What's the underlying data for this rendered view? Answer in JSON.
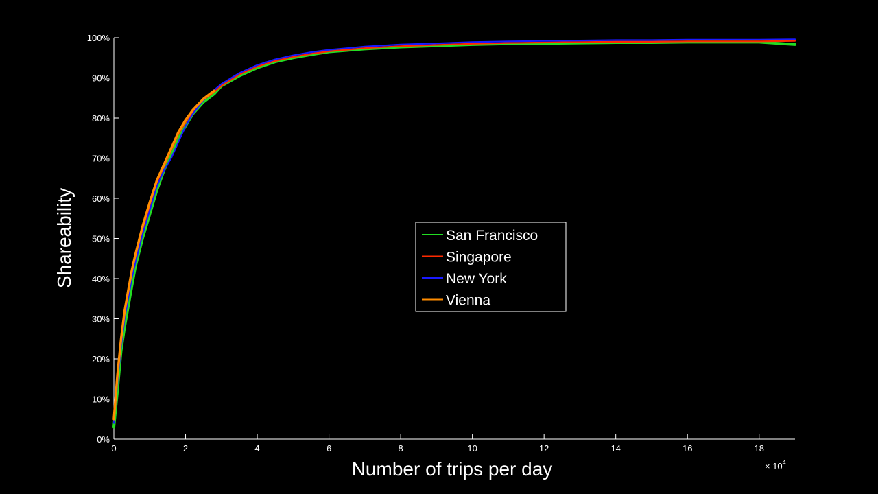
{
  "chart_data": {
    "type": "line",
    "title": "",
    "xlabel": "Number of trips per day",
    "ylabel": "Shareability",
    "x_multiplier_label": {
      "base": "× 10",
      "exp": "4"
    },
    "xlim": [
      0,
      190000
    ],
    "ylim": [
      0,
      100
    ],
    "x_ticks": [
      0,
      20000,
      40000,
      60000,
      80000,
      100000,
      120000,
      140000,
      160000,
      180000
    ],
    "x_tick_labels": [
      "0",
      "2",
      "4",
      "6",
      "8",
      "10",
      "12",
      "14",
      "16",
      "18"
    ],
    "y_ticks": [
      0,
      10,
      20,
      30,
      40,
      50,
      60,
      70,
      80,
      90,
      100
    ],
    "y_tick_labels": [
      "0%",
      "10%",
      "20%",
      "30%",
      "40%",
      "50%",
      "60%",
      "70%",
      "80%",
      "90%",
      "100%"
    ],
    "grid": false,
    "legend_position": "center",
    "series": [
      {
        "name": "San Francisco",
        "color": "#22dd22",
        "x": [
          0,
          1000,
          2000,
          3000,
          4000,
          5000,
          6000,
          8000,
          10000,
          12000,
          14000,
          16000,
          18000,
          20000,
          22000,
          25000,
          28000,
          30000,
          35000,
          40000,
          45000,
          50000,
          55000,
          60000,
          70000,
          80000,
          90000,
          100000,
          110000,
          120000,
          130000,
          140000,
          150000,
          160000,
          170000,
          180000,
          190000
        ],
        "y": [
          3,
          12,
          22,
          28,
          33,
          38,
          43,
          50,
          56,
          62,
          67,
          71,
          75,
          78,
          81,
          84,
          86,
          88,
          90.5,
          92.5,
          94,
          95,
          95.8,
          96.5,
          97.2,
          97.7,
          98,
          98.3,
          98.5,
          98.6,
          98.7,
          98.8,
          98.8,
          98.9,
          98.9,
          98.9,
          98.3
        ]
      },
      {
        "name": "Singapore",
        "color": "#ff2a00",
        "x": [
          0,
          1000,
          2000,
          3000,
          4000,
          5000,
          6000,
          8000,
          10000,
          12000,
          14000,
          16000,
          18000,
          20000,
          22000,
          25000,
          28000,
          30000,
          35000,
          40000,
          45000,
          50000,
          55000,
          60000,
          70000,
          80000,
          90000,
          100000,
          110000,
          120000,
          130000,
          140000,
          150000,
          160000,
          170000,
          180000,
          190000
        ],
        "y": [
          5,
          15,
          24,
          31,
          36,
          41,
          45,
          52,
          58,
          64,
          68,
          72,
          76,
          79,
          81.5,
          84.5,
          86.5,
          88,
          90.8,
          92.8,
          94.2,
          95.2,
          96,
          96.6,
          97.4,
          97.9,
          98.2,
          98.5,
          98.7,
          98.8,
          98.9,
          99,
          99,
          99.1,
          99.1,
          99.1,
          99.2
        ]
      },
      {
        "name": "New York",
        "color": "#1a1aff",
        "x": [
          0,
          1000,
          2000,
          3000,
          4000,
          5000,
          6000,
          8000,
          10000,
          12000,
          14000,
          16000,
          18000,
          20000,
          22000,
          25000,
          28000,
          30000,
          35000,
          40000,
          45000,
          50000,
          55000,
          60000,
          70000,
          80000,
          90000,
          100000,
          110000,
          120000,
          130000,
          140000,
          150000,
          160000,
          170000,
          180000,
          190000
        ],
        "y": [
          4,
          14,
          23,
          30,
          35,
          40,
          44,
          51,
          57,
          63,
          67,
          70,
          74,
          78,
          81,
          84.5,
          87,
          88.5,
          91.2,
          93.2,
          94.6,
          95.6,
          96.4,
          97,
          97.8,
          98.3,
          98.6,
          98.9,
          99.1,
          99.2,
          99.3,
          99.4,
          99.4,
          99.5,
          99.5,
          99.5,
          99.6
        ]
      },
      {
        "name": "Vienna",
        "color": "#ff8c00",
        "x": [
          0,
          1000,
          2000,
          3000,
          4000,
          5000,
          6000,
          8000,
          10000,
          12000,
          14000,
          16000,
          18000,
          20000,
          22000,
          25000,
          28000
        ],
        "y": [
          5,
          16,
          25,
          32,
          37,
          42,
          46,
          53,
          59,
          64.5,
          68.5,
          72.5,
          76.5,
          79.5,
          82,
          84.8,
          86.8
        ]
      }
    ]
  }
}
